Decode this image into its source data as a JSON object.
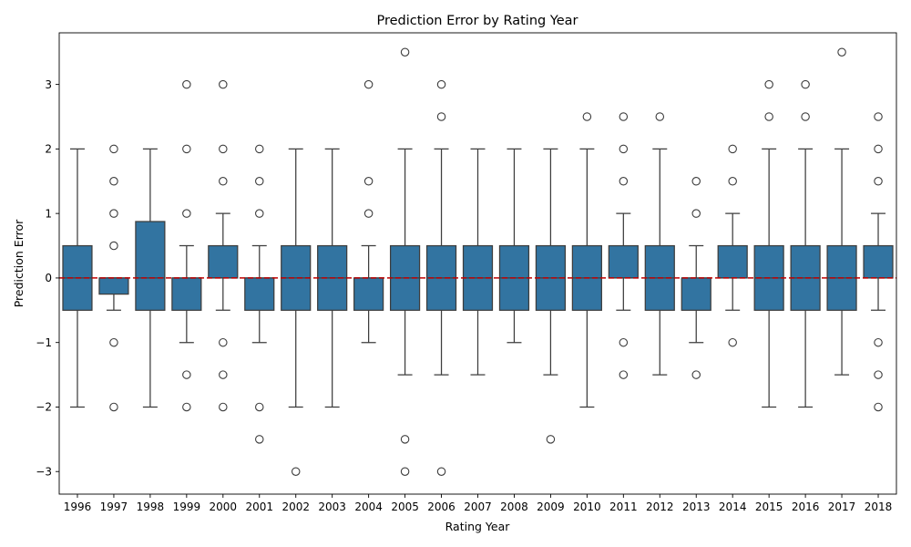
{
  "chart_data": {
    "type": "box",
    "title": "Prediction Error by Rating Year",
    "xlabel": "Rating Year",
    "ylabel": "Prediction Error",
    "ylim": [
      -3.35,
      3.8
    ],
    "yticks": [
      -3,
      -2,
      -1,
      0,
      1,
      2,
      3
    ],
    "ytick_labels": [
      "−3",
      "−2",
      "−1",
      "0",
      "1",
      "2",
      "3"
    ],
    "reference_line": {
      "y": 0,
      "style": "dashed",
      "color": "#c00000"
    },
    "box_color": "#3274a1",
    "grid": false,
    "categories": [
      "1996",
      "1997",
      "1998",
      "1999",
      "2000",
      "2001",
      "2002",
      "2003",
      "2004",
      "2005",
      "2006",
      "2007",
      "2008",
      "2009",
      "2010",
      "2011",
      "2012",
      "2013",
      "2014",
      "2015",
      "2016",
      "2017",
      "2018"
    ],
    "boxes": [
      {
        "q1": -0.5,
        "median": 0,
        "q3": 0.5,
        "whisker_low": -2,
        "whisker_high": 2,
        "outliers": []
      },
      {
        "q1": -0.25,
        "median": 0,
        "q3": 0,
        "whisker_low": -0.5,
        "whisker_high": 0,
        "outliers": [
          2,
          1.5,
          1,
          0.5,
          -1,
          -2
        ]
      },
      {
        "q1": -0.5,
        "median": 0,
        "q3": 0.875,
        "whisker_low": -2,
        "whisker_high": 2,
        "outliers": []
      },
      {
        "q1": -0.5,
        "median": 0,
        "q3": 0,
        "whisker_low": -1,
        "whisker_high": 0.5,
        "outliers": [
          3,
          2,
          1,
          -1.5,
          -2
        ]
      },
      {
        "q1": 0,
        "median": 0,
        "q3": 0.5,
        "whisker_low": -0.5,
        "whisker_high": 1,
        "outliers": [
          3,
          2,
          1.5,
          -1,
          -1.5,
          -2
        ]
      },
      {
        "q1": -0.5,
        "median": 0,
        "q3": 0,
        "whisker_low": -1,
        "whisker_high": 0.5,
        "outliers": [
          2,
          1.5,
          1,
          -2,
          -2.5
        ]
      },
      {
        "q1": -0.5,
        "median": 0,
        "q3": 0.5,
        "whisker_low": -2,
        "whisker_high": 2,
        "outliers": [
          -3
        ]
      },
      {
        "q1": -0.5,
        "median": 0,
        "q3": 0.5,
        "whisker_low": -2,
        "whisker_high": 2,
        "outliers": []
      },
      {
        "q1": -0.5,
        "median": 0,
        "q3": 0,
        "whisker_low": -1,
        "whisker_high": 0.5,
        "outliers": [
          3,
          1.5,
          1
        ]
      },
      {
        "q1": -0.5,
        "median": 0,
        "q3": 0.5,
        "whisker_low": -1.5,
        "whisker_high": 2,
        "outliers": [
          3.5,
          -2.5,
          -3
        ]
      },
      {
        "q1": -0.5,
        "median": 0,
        "q3": 0.5,
        "whisker_low": -1.5,
        "whisker_high": 2,
        "outliers": [
          3,
          2.5,
          -3
        ]
      },
      {
        "q1": -0.5,
        "median": 0,
        "q3": 0.5,
        "whisker_low": -1.5,
        "whisker_high": 2,
        "outliers": []
      },
      {
        "q1": -0.5,
        "median": 0,
        "q3": 0.5,
        "whisker_low": -1,
        "whisker_high": 2,
        "outliers": []
      },
      {
        "q1": -0.5,
        "median": 0,
        "q3": 0.5,
        "whisker_low": -1.5,
        "whisker_high": 2,
        "outliers": [
          -2.5
        ]
      },
      {
        "q1": -0.5,
        "median": 0,
        "q3": 0.5,
        "whisker_low": -2,
        "whisker_high": 2,
        "outliers": [
          2.5
        ]
      },
      {
        "q1": 0,
        "median": 0,
        "q3": 0.5,
        "whisker_low": -0.5,
        "whisker_high": 1,
        "outliers": [
          2.5,
          2,
          1.5,
          -1,
          -1.5
        ]
      },
      {
        "q1": -0.5,
        "median": 0,
        "q3": 0.5,
        "whisker_low": -1.5,
        "whisker_high": 2,
        "outliers": [
          2.5
        ]
      },
      {
        "q1": -0.5,
        "median": 0,
        "q3": 0,
        "whisker_low": -1,
        "whisker_high": 0.5,
        "outliers": [
          1.5,
          1,
          -1.5
        ]
      },
      {
        "q1": 0,
        "median": 0,
        "q3": 0.5,
        "whisker_low": -0.5,
        "whisker_high": 1,
        "outliers": [
          2,
          1.5,
          -1
        ]
      },
      {
        "q1": -0.5,
        "median": 0,
        "q3": 0.5,
        "whisker_low": -2,
        "whisker_high": 2,
        "outliers": [
          3,
          2.5
        ]
      },
      {
        "q1": -0.5,
        "median": 0,
        "q3": 0.5,
        "whisker_low": -2,
        "whisker_high": 2,
        "outliers": [
          3,
          2.5
        ]
      },
      {
        "q1": -0.5,
        "median": 0,
        "q3": 0.5,
        "whisker_low": -1.5,
        "whisker_high": 2,
        "outliers": [
          3.5
        ]
      },
      {
        "q1": 0,
        "median": 0,
        "q3": 0.5,
        "whisker_low": -0.5,
        "whisker_high": 1,
        "outliers": [
          2.5,
          2,
          1.5,
          -1,
          -1.5,
          -2
        ]
      }
    ]
  }
}
